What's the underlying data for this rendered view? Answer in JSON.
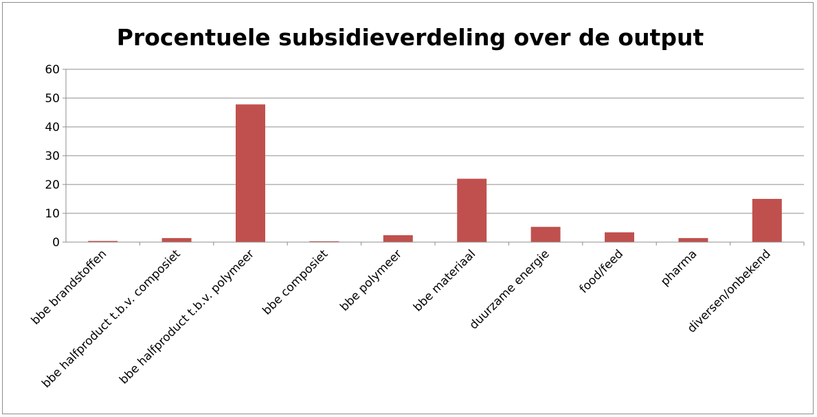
{
  "chart_data": {
    "type": "bar",
    "title": "Procentuele subsidieverdeling over de output",
    "xlabel": "",
    "ylabel": "",
    "categories": [
      "bbe brandstoffen",
      "bbe halfproduct t.b.v. composiet",
      "bbe halfproduct t.b.v. polymeer",
      "bbe composiet",
      "bbe polymeer",
      "bbe materiaal",
      "duurzame energie",
      "food/feed",
      "pharma",
      "diversen/onbekend"
    ],
    "values": [
      0.4,
      1.4,
      47.8,
      0.3,
      2.4,
      22.0,
      5.3,
      3.4,
      1.4,
      15.0
    ],
    "ylim": [
      0,
      60
    ],
    "yticks": [
      "0",
      "10",
      "20",
      "30",
      "40",
      "50",
      "60"
    ],
    "grid": true,
    "legend": "none",
    "bar_color": "#c0504d",
    "grid_color": "#8c8c8c"
  }
}
